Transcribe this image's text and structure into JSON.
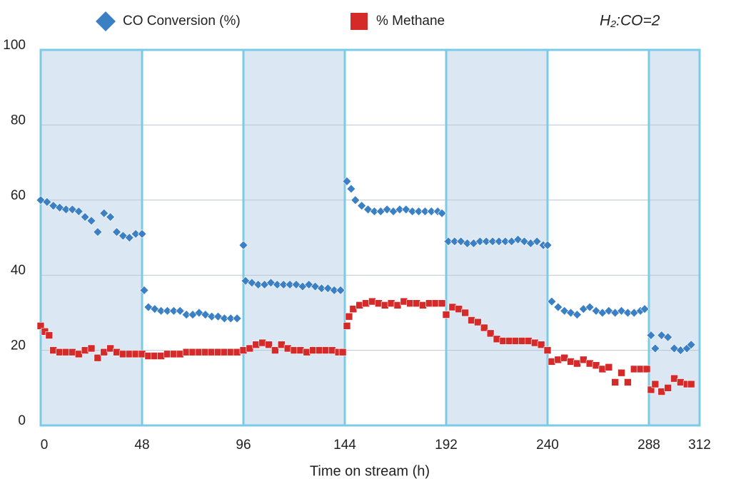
{
  "chart_data": {
    "type": "scatter",
    "annotation": "H₂:CO=2",
    "xlabel": "Time on stream (h)",
    "xlim": [
      0,
      312
    ],
    "xticks": [
      0,
      48,
      96,
      144,
      192,
      240,
      288,
      312
    ],
    "ylim": [
      0,
      100
    ],
    "yticks": [
      0,
      20,
      40,
      60,
      80,
      100
    ],
    "grid": true,
    "legend": "top",
    "series": [
      {
        "name": "CO Conversion (%)",
        "color": "#3b7fc4",
        "marker": "diamond",
        "x": [
          0,
          3,
          6,
          9,
          12,
          15,
          18,
          21,
          24,
          27,
          30,
          33,
          36,
          39,
          42,
          45,
          48,
          49,
          51,
          54,
          57,
          60,
          63,
          66,
          69,
          72,
          75,
          78,
          81,
          84,
          87,
          90,
          93,
          96,
          97,
          100,
          103,
          106,
          109,
          112,
          115,
          118,
          121,
          124,
          127,
          130,
          133,
          136,
          139,
          142,
          145,
          147,
          149,
          152,
          155,
          158,
          161,
          164,
          167,
          170,
          173,
          176,
          179,
          182,
          185,
          188,
          190,
          193,
          196,
          199,
          202,
          205,
          208,
          211,
          214,
          217,
          220,
          223,
          226,
          229,
          232,
          235,
          238,
          240,
          242,
          245,
          248,
          251,
          254,
          257,
          260,
          263,
          266,
          269,
          272,
          275,
          278,
          281,
          284,
          286,
          289,
          291,
          294,
          297,
          300,
          303,
          306,
          308
        ],
        "values": [
          60,
          59.5,
          58.5,
          58,
          57.5,
          57.5,
          57,
          55.5,
          54.5,
          51.5,
          56.5,
          55.5,
          51.5,
          50.5,
          50,
          51,
          51,
          36,
          31.5,
          31,
          30.5,
          30.5,
          30.5,
          30.5,
          29.5,
          29.5,
          30,
          29.5,
          29,
          29,
          28.5,
          28.5,
          28.5,
          48,
          38.5,
          38,
          37.5,
          37.5,
          38,
          37.5,
          37.5,
          37.5,
          37.5,
          37,
          37.5,
          37,
          36.5,
          36.5,
          36,
          36,
          65,
          63,
          60,
          58.5,
          57.5,
          57,
          57,
          57.5,
          57,
          57.5,
          57.5,
          57,
          57,
          57,
          57,
          57,
          56.5,
          49,
          49,
          49,
          48.5,
          48.5,
          49,
          49,
          49,
          49,
          49,
          49,
          49.5,
          49,
          48.5,
          49,
          48,
          48,
          33,
          31.5,
          30.5,
          30,
          29.5,
          31,
          31.5,
          30.5,
          30,
          30.5,
          30,
          30.5,
          30,
          30,
          30.5,
          31,
          24,
          20.5,
          24,
          23.5,
          20.5,
          20,
          20.5,
          21.5
        ]
      },
      {
        "name": "% Methane",
        "color": "#d42a2a",
        "marker": "square",
        "x": [
          0,
          2,
          4,
          6,
          9,
          12,
          15,
          18,
          21,
          24,
          27,
          30,
          33,
          36,
          39,
          42,
          45,
          48,
          51,
          54,
          57,
          60,
          63,
          66,
          69,
          72,
          75,
          78,
          81,
          84,
          87,
          90,
          93,
          96,
          99,
          102,
          105,
          108,
          111,
          114,
          117,
          120,
          123,
          126,
          129,
          132,
          135,
          138,
          141,
          143,
          145,
          146,
          148,
          151,
          154,
          157,
          160,
          163,
          166,
          169,
          172,
          175,
          178,
          181,
          184,
          187,
          190,
          192,
          195,
          198,
          201,
          204,
          207,
          210,
          213,
          216,
          219,
          222,
          225,
          228,
          231,
          234,
          237,
          240,
          242,
          245,
          248,
          251,
          254,
          257,
          260,
          263,
          266,
          269,
          272,
          275,
          278,
          281,
          284,
          287,
          289,
          291,
          294,
          297,
          300,
          303,
          306,
          308
        ],
        "values": [
          26.5,
          25,
          24,
          20,
          19.5,
          19.5,
          19.5,
          19,
          20,
          20.5,
          18,
          19.5,
          20.5,
          19.5,
          19,
          19,
          19,
          19,
          18.5,
          18.5,
          18.5,
          19,
          19,
          19,
          19.5,
          19.5,
          19.5,
          19.5,
          19.5,
          19.5,
          19.5,
          19.5,
          19.5,
          20,
          20.5,
          21.5,
          22,
          21.5,
          20,
          21.5,
          20.5,
          20,
          20,
          19.5,
          20,
          20,
          20,
          20,
          19.5,
          19.5,
          26.5,
          29,
          31,
          32,
          32.5,
          33,
          32.5,
          32,
          32.5,
          32,
          33,
          32.5,
          32.5,
          32,
          32.5,
          32.5,
          32.5,
          29.5,
          31.5,
          31,
          30,
          28,
          27.5,
          26,
          24.5,
          23,
          22.5,
          22.5,
          22.5,
          22.5,
          22.5,
          22,
          21.5,
          20,
          17,
          17.5,
          18,
          17,
          16.5,
          17.5,
          16.5,
          16,
          15,
          15.5,
          11.5,
          14,
          11.5,
          15,
          15,
          15,
          9.5,
          11,
          9,
          10,
          12.5,
          11.5,
          11,
          11
        ]
      }
    ]
  }
}
